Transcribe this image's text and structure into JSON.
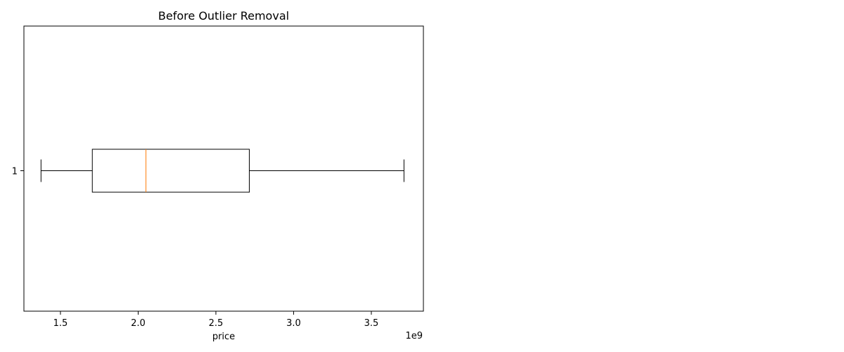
{
  "chart_data": {
    "type": "boxplot",
    "orientation": "horizontal",
    "title": "Before Outlier Removal",
    "xlabel": "price",
    "ylabel": "",
    "x_offset_label": "1e9",
    "x_scale_exponent": 9,
    "xlim": [
      1.265,
      3.835
    ],
    "xticks": [
      1.5,
      2.0,
      2.5,
      3.0,
      3.5
    ],
    "xtick_labels": [
      "1.5",
      "2.0",
      "2.5",
      "3.0",
      "3.5"
    ],
    "ytick_labels": [
      "1"
    ],
    "grid": false,
    "legend": "none",
    "boxes": [
      {
        "category": "1",
        "whisker_low": 1.375,
        "q1": 1.705,
        "median": 2.05,
        "q3": 2.715,
        "whisker_high": 3.71
      }
    ],
    "colors": {
      "box": "#000000",
      "median": "#ff7f0e",
      "axes": "#000000"
    }
  }
}
